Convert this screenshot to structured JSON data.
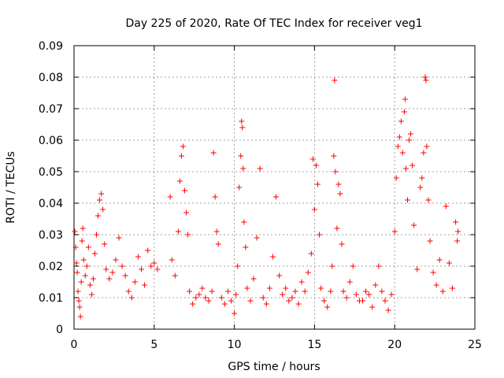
{
  "chart_data": {
    "type": "scatter",
    "title": "Day 225 of 2020, Rate Of TEC Index for receiver veg1",
    "xlabel": "GPS time / hours",
    "ylabel": "ROTI / TECUs",
    "xlim": [
      0,
      25
    ],
    "ylim": [
      0,
      0.09
    ],
    "x_ticks": [
      0,
      5,
      10,
      15,
      20,
      25
    ],
    "x_tick_labels": [
      "0",
      "5",
      "10",
      "15",
      "20",
      "25"
    ],
    "y_ticks": [
      0,
      0.01,
      0.02,
      0.03,
      0.04,
      0.05,
      0.06,
      0.07,
      0.08,
      0.09
    ],
    "y_tick_labels": [
      "0",
      "0.01",
      "0.02",
      "0.03",
      "0.04",
      "0.05",
      "0.06",
      "0.07",
      "0.08",
      "0.09"
    ],
    "grid": true,
    "marker": "plus",
    "marker_color": "#ff0000",
    "series": [
      {
        "name": "ROTI veg1",
        "points": [
          [
            0.05,
            0.031
          ],
          [
            0.1,
            0.026
          ],
          [
            0.15,
            0.021
          ],
          [
            0.2,
            0.018
          ],
          [
            0.25,
            0.012
          ],
          [
            0.3,
            0.009
          ],
          [
            0.35,
            0.007
          ],
          [
            0.4,
            0.004
          ],
          [
            0.45,
            0.015
          ],
          [
            0.5,
            0.028
          ],
          [
            0.55,
            0.032
          ],
          [
            0.6,
            0.022
          ],
          [
            0.7,
            0.017
          ],
          [
            0.8,
            0.02
          ],
          [
            0.9,
            0.026
          ],
          [
            1.0,
            0.014
          ],
          [
            1.1,
            0.011
          ],
          [
            1.2,
            0.016
          ],
          [
            1.3,
            0.024
          ],
          [
            1.4,
            0.03
          ],
          [
            1.5,
            0.036
          ],
          [
            1.6,
            0.041
          ],
          [
            1.7,
            0.043
          ],
          [
            1.8,
            0.038
          ],
          [
            1.9,
            0.027
          ],
          [
            2.0,
            0.019
          ],
          [
            2.2,
            0.016
          ],
          [
            2.4,
            0.018
          ],
          [
            2.6,
            0.022
          ],
          [
            2.8,
            0.029
          ],
          [
            3.0,
            0.02
          ],
          [
            3.2,
            0.017
          ],
          [
            3.4,
            0.012
          ],
          [
            3.6,
            0.01
          ],
          [
            3.8,
            0.015
          ],
          [
            4.0,
            0.023
          ],
          [
            4.2,
            0.019
          ],
          [
            4.4,
            0.014
          ],
          [
            4.6,
            0.025
          ],
          [
            4.8,
            0.02
          ],
          [
            5.0,
            0.021
          ],
          [
            5.2,
            0.019
          ],
          [
            6.0,
            0.042
          ],
          [
            6.1,
            0.022
          ],
          [
            6.3,
            0.017
          ],
          [
            6.5,
            0.031
          ],
          [
            6.6,
            0.047
          ],
          [
            6.7,
            0.055
          ],
          [
            6.8,
            0.058
          ],
          [
            6.9,
            0.044
          ],
          [
            7.0,
            0.037
          ],
          [
            7.1,
            0.03
          ],
          [
            7.2,
            0.012
          ],
          [
            7.4,
            0.008
          ],
          [
            7.6,
            0.01
          ],
          [
            7.8,
            0.011
          ],
          [
            8.0,
            0.013
          ],
          [
            8.2,
            0.01
          ],
          [
            8.4,
            0.009
          ],
          [
            8.6,
            0.012
          ],
          [
            8.7,
            0.056
          ],
          [
            8.8,
            0.042
          ],
          [
            8.9,
            0.031
          ],
          [
            9.0,
            0.027
          ],
          [
            9.2,
            0.01
          ],
          [
            9.4,
            0.008
          ],
          [
            9.6,
            0.012
          ],
          [
            9.8,
            0.009
          ],
          [
            10.0,
            0.005
          ],
          [
            10.1,
            0.011
          ],
          [
            10.2,
            0.02
          ],
          [
            10.3,
            0.045
          ],
          [
            10.4,
            0.055
          ],
          [
            10.45,
            0.066
          ],
          [
            10.5,
            0.064
          ],
          [
            10.55,
            0.051
          ],
          [
            10.6,
            0.034
          ],
          [
            10.7,
            0.026
          ],
          [
            10.8,
            0.013
          ],
          [
            11.0,
            0.009
          ],
          [
            11.2,
            0.016
          ],
          [
            11.4,
            0.029
          ],
          [
            11.6,
            0.051
          ],
          [
            11.8,
            0.01
          ],
          [
            12.0,
            0.008
          ],
          [
            12.2,
            0.013
          ],
          [
            12.4,
            0.023
          ],
          [
            12.6,
            0.042
          ],
          [
            12.8,
            0.017
          ],
          [
            13.0,
            0.011
          ],
          [
            13.2,
            0.013
          ],
          [
            13.4,
            0.009
          ],
          [
            13.6,
            0.01
          ],
          [
            13.8,
            0.012
          ],
          [
            14.0,
            0.008
          ],
          [
            14.2,
            0.015
          ],
          [
            14.4,
            0.012
          ],
          [
            14.6,
            0.018
          ],
          [
            14.8,
            0.024
          ],
          [
            14.9,
            0.054
          ],
          [
            15.0,
            0.038
          ],
          [
            15.1,
            0.052
          ],
          [
            15.2,
            0.046
          ],
          [
            15.3,
            0.03
          ],
          [
            15.4,
            0.013
          ],
          [
            15.6,
            0.009
          ],
          [
            15.8,
            0.007
          ],
          [
            16.0,
            0.012
          ],
          [
            16.1,
            0.02
          ],
          [
            16.2,
            0.055
          ],
          [
            16.25,
            0.079
          ],
          [
            16.3,
            0.05
          ],
          [
            16.4,
            0.032
          ],
          [
            16.5,
            0.046
          ],
          [
            16.6,
            0.043
          ],
          [
            16.7,
            0.027
          ],
          [
            16.8,
            0.012
          ],
          [
            17.0,
            0.01
          ],
          [
            17.2,
            0.015
          ],
          [
            17.4,
            0.02
          ],
          [
            17.6,
            0.011
          ],
          [
            17.8,
            0.009
          ],
          [
            18.0,
            0.009
          ],
          [
            18.2,
            0.012
          ],
          [
            18.4,
            0.011
          ],
          [
            18.6,
            0.007
          ],
          [
            18.8,
            0.014
          ],
          [
            19.0,
            0.02
          ],
          [
            19.2,
            0.012
          ],
          [
            19.4,
            0.009
          ],
          [
            19.6,
            0.006
          ],
          [
            19.8,
            0.011
          ],
          [
            20.0,
            0.031
          ],
          [
            20.1,
            0.048
          ],
          [
            20.2,
            0.058
          ],
          [
            20.3,
            0.061
          ],
          [
            20.4,
            0.066
          ],
          [
            20.5,
            0.056
          ],
          [
            20.6,
            0.069
          ],
          [
            20.65,
            0.073
          ],
          [
            20.7,
            0.051
          ],
          [
            20.8,
            0.041
          ],
          [
            20.9,
            0.06
          ],
          [
            21.0,
            0.062
          ],
          [
            21.1,
            0.052
          ],
          [
            21.2,
            0.033
          ],
          [
            21.4,
            0.019
          ],
          [
            21.6,
            0.045
          ],
          [
            21.7,
            0.048
          ],
          [
            21.8,
            0.056
          ],
          [
            21.9,
            0.08
          ],
          [
            21.95,
            0.079
          ],
          [
            22.0,
            0.058
          ],
          [
            22.1,
            0.041
          ],
          [
            22.2,
            0.028
          ],
          [
            22.4,
            0.018
          ],
          [
            22.6,
            0.014
          ],
          [
            22.8,
            0.022
          ],
          [
            23.0,
            0.012
          ],
          [
            23.2,
            0.039
          ],
          [
            23.4,
            0.021
          ],
          [
            23.6,
            0.013
          ],
          [
            23.8,
            0.034
          ],
          [
            23.9,
            0.028
          ],
          [
            23.95,
            0.031
          ]
        ]
      }
    ]
  }
}
